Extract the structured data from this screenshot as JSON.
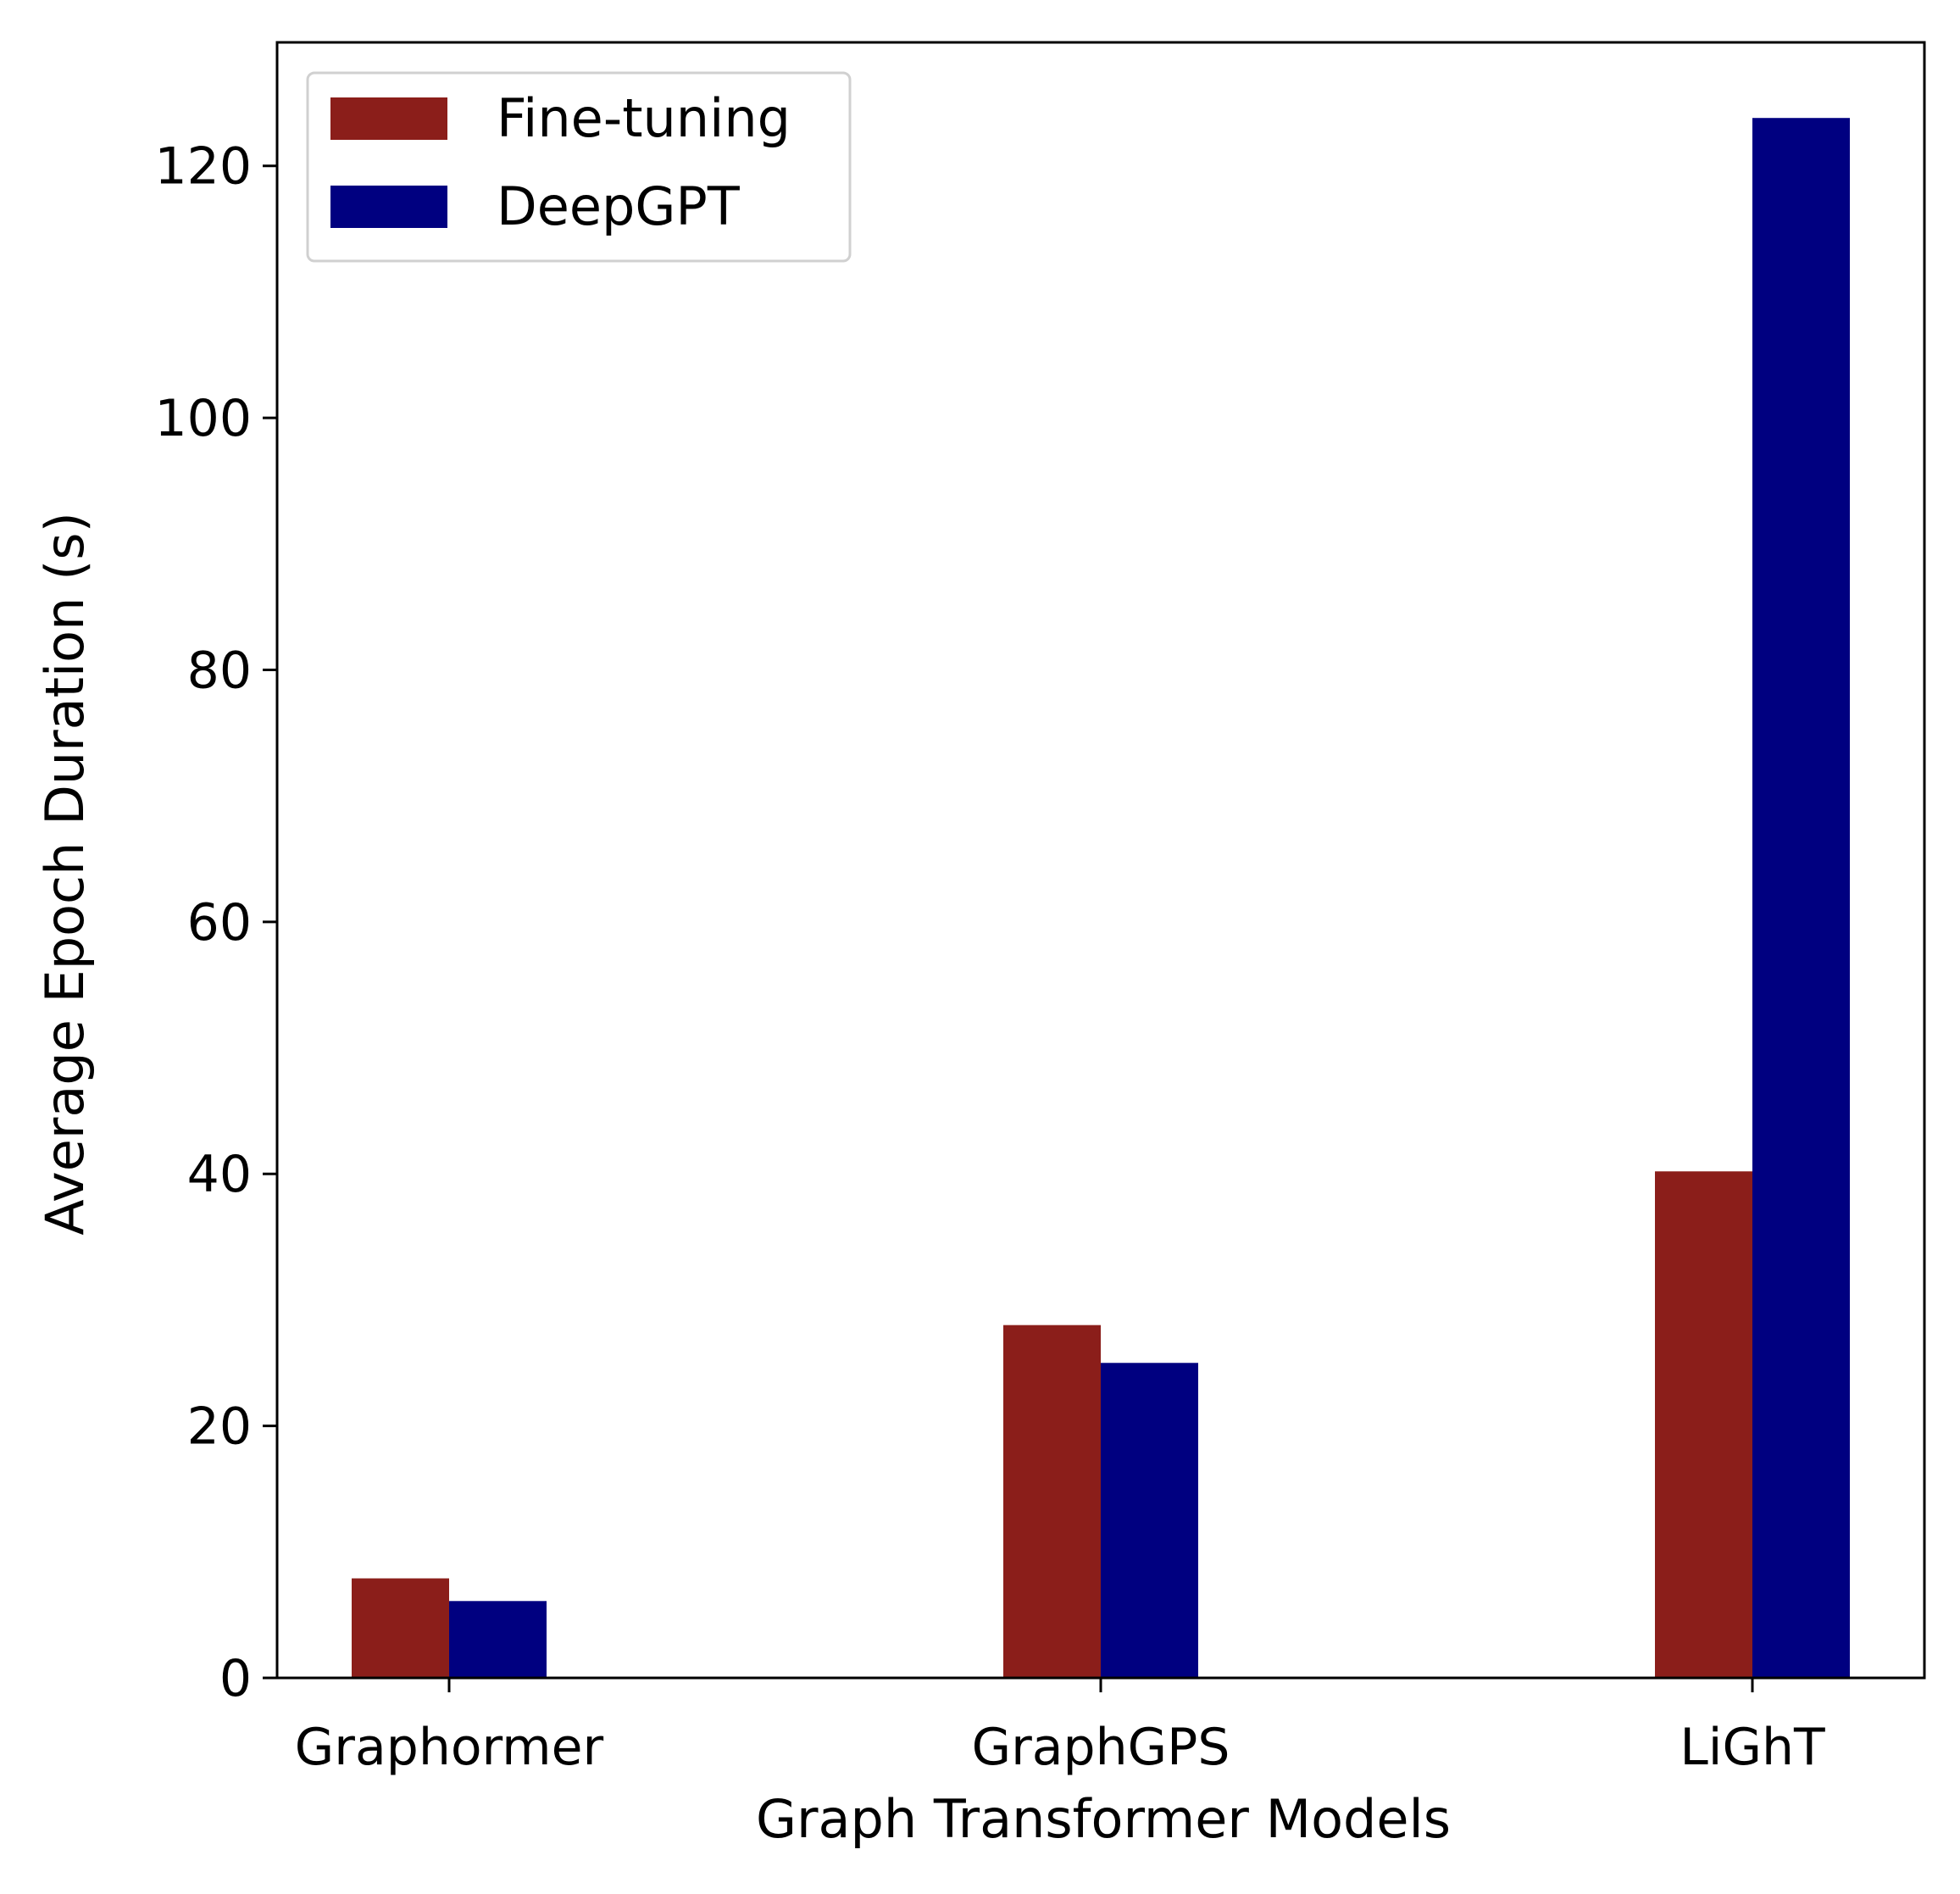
{
  "chart_data": {
    "type": "bar",
    "categories": [
      "Graphormer",
      "GraphGPS",
      "LiGhT"
    ],
    "series": [
      {
        "name": "Fine-tuning",
        "color": "#8b1e1a",
        "values": [
          7.9,
          28.0,
          40.2
        ]
      },
      {
        "name": "DeepGPT",
        "color": "#000080",
        "values": [
          6.1,
          25.0,
          123.8
        ]
      }
    ],
    "title": "",
    "xlabel": "Graph Transformer Models",
    "ylabel": "Average Epoch Duration (s)",
    "ylim": [
      0,
      129.8
    ],
    "yticks": [
      0,
      20,
      40,
      60,
      80,
      100,
      120
    ],
    "grid": false,
    "legend": "top-left"
  }
}
